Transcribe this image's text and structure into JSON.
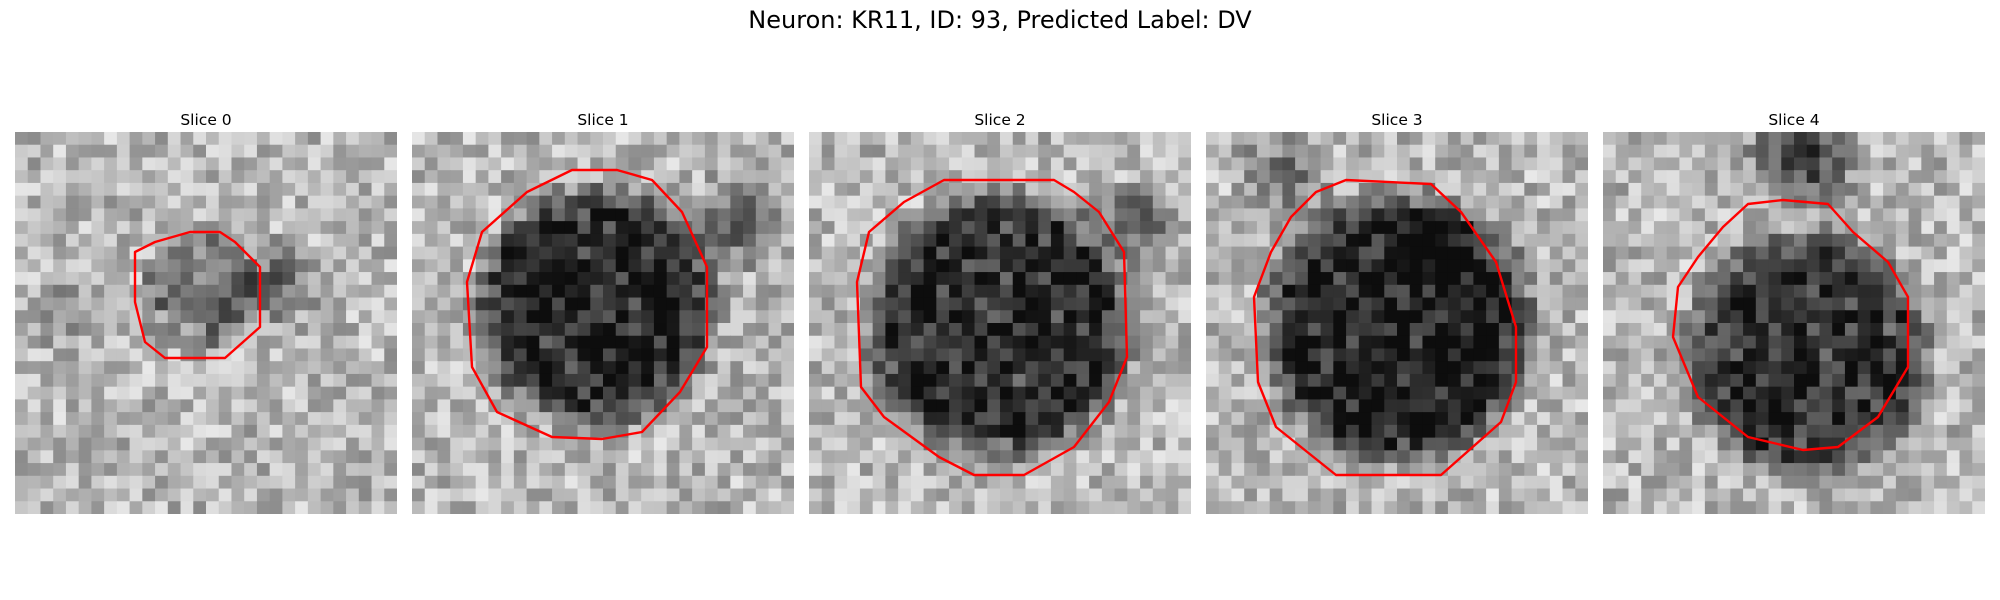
{
  "figure": {
    "title": "Neuron: KR11, ID: 93, Predicted Label: DV"
  },
  "panels": [
    {
      "title": "Slice 0",
      "roi_color": "#ff0000",
      "grid_size": 30
    },
    {
      "title": "Slice 1",
      "roi_color": "#ff0000",
      "grid_size": 30
    },
    {
      "title": "Slice 2",
      "roi_color": "#ff0000",
      "grid_size": 30
    },
    {
      "title": "Slice 3",
      "roi_color": "#ff0000",
      "grid_size": 30
    },
    {
      "title": "Slice 4",
      "roi_color": "#ff0000",
      "grid_size": 30
    }
  ],
  "colors": {
    "colormap": "grayscale",
    "roi_outline": "#ff0000"
  }
}
